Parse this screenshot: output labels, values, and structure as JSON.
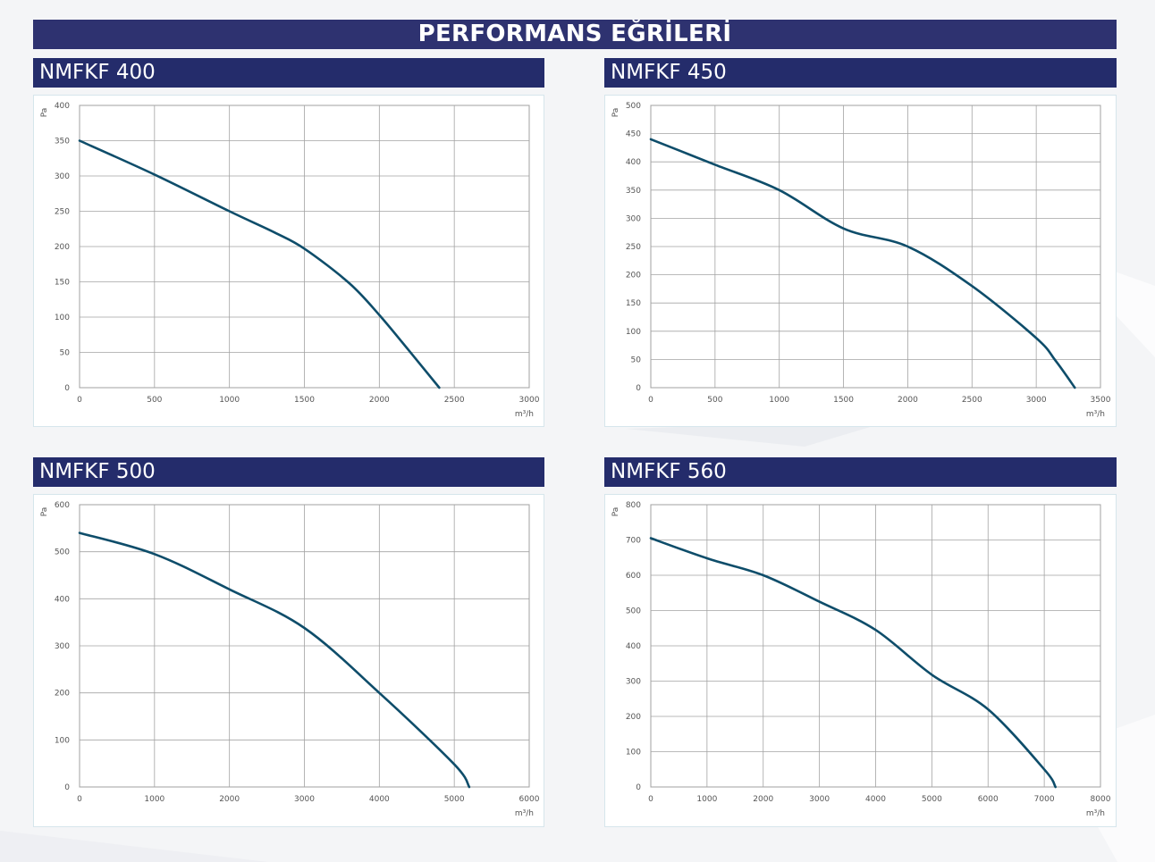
{
  "page": {
    "title": "PERFORMANS EĞRİLERİ"
  },
  "chart_data": [
    {
      "type": "line",
      "title": "NMFKF 400",
      "xlabel": "m³/h",
      "ylabel": "Pa",
      "xlim": [
        0,
        3000
      ],
      "ylim": [
        0,
        400
      ],
      "xticks": [
        0,
        500,
        1000,
        1500,
        2000,
        2500,
        3000
      ],
      "yticks": [
        0,
        50,
        100,
        150,
        200,
        250,
        300,
        350,
        400
      ],
      "grid": true,
      "color": "#0e4d6a",
      "x": [
        0,
        500,
        1000,
        1300,
        1500,
        1800,
        2000,
        2200,
        2400
      ],
      "y": [
        350,
        302,
        250,
        220,
        197,
        148,
        103,
        52,
        0
      ]
    },
    {
      "type": "line",
      "title": "NMFKF 450",
      "xlabel": "m³/h",
      "ylabel": "Pa",
      "xlim": [
        0,
        3500
      ],
      "ylim": [
        0,
        500
      ],
      "xticks": [
        0,
        500,
        1000,
        1500,
        2000,
        2500,
        3000,
        3500
      ],
      "yticks": [
        0,
        50,
        100,
        150,
        200,
        250,
        300,
        350,
        400,
        450,
        500
      ],
      "grid": true,
      "color": "#0e4d6a",
      "x": [
        0,
        500,
        1000,
        1500,
        2000,
        2500,
        3000,
        3150,
        3300
      ],
      "y": [
        440,
        395,
        350,
        282,
        250,
        180,
        88,
        48,
        0
      ]
    },
    {
      "type": "line",
      "title": "NMFKF 500",
      "xlabel": "m³/h",
      "ylabel": "Pa",
      "xlim": [
        0,
        6000
      ],
      "ylim": [
        0,
        600
      ],
      "xticks": [
        0,
        1000,
        2000,
        3000,
        4000,
        5000,
        6000
      ],
      "yticks": [
        0,
        100,
        200,
        300,
        400,
        500,
        600
      ],
      "grid": true,
      "color": "#0e4d6a",
      "x": [
        0,
        1000,
        2000,
        3000,
        4000,
        5000,
        5200
      ],
      "y": [
        540,
        495,
        420,
        338,
        200,
        48,
        0
      ]
    },
    {
      "type": "line",
      "title": "NMFKF 560",
      "xlabel": "m³/h",
      "ylabel": "Pa",
      "xlim": [
        0,
        8000
      ],
      "ylim": [
        0,
        800
      ],
      "xticks": [
        0,
        1000,
        2000,
        3000,
        4000,
        5000,
        6000,
        7000,
        8000
      ],
      "yticks": [
        0,
        100,
        200,
        300,
        400,
        500,
        600,
        700,
        800
      ],
      "grid": true,
      "color": "#0e4d6a",
      "x": [
        0,
        1000,
        2000,
        3000,
        4000,
        5000,
        6000,
        7000,
        7200
      ],
      "y": [
        705,
        648,
        600,
        525,
        445,
        318,
        220,
        50,
        0
      ]
    }
  ]
}
